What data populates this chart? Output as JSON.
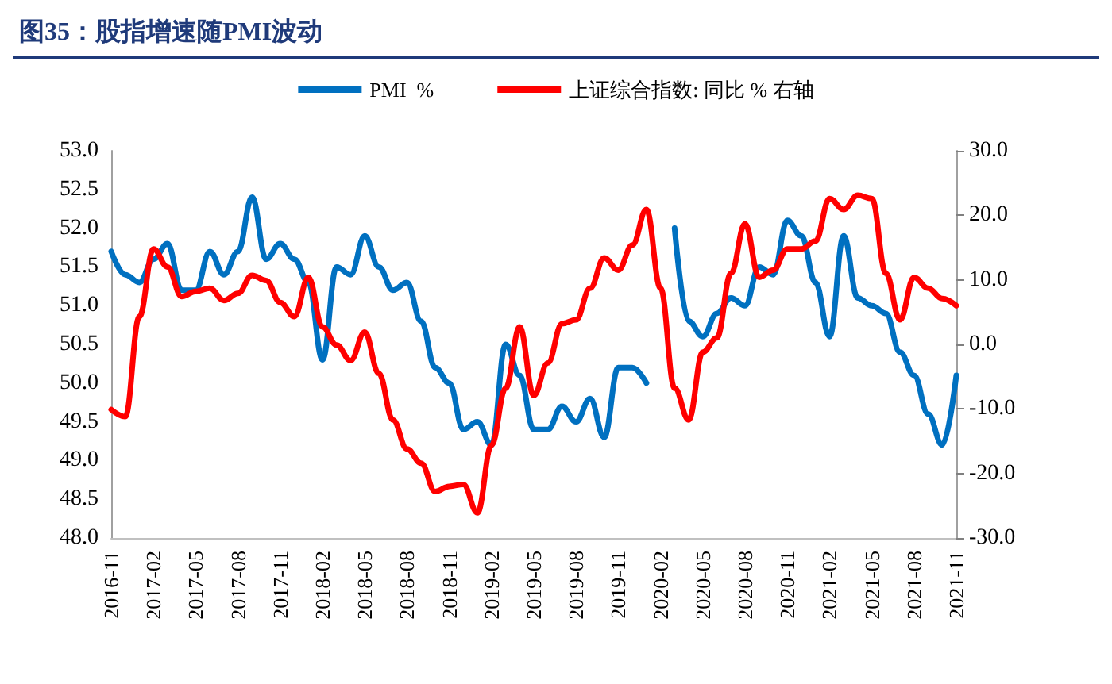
{
  "chart_data": {
    "type": "line",
    "title": "图35：股指增速随PMI波动",
    "categories": [
      "2016-11",
      null,
      null,
      "2017-02",
      null,
      null,
      "2017-05",
      null,
      null,
      "2017-08",
      null,
      null,
      "2017-11",
      null,
      null,
      "2018-02",
      null,
      null,
      "2018-05",
      null,
      null,
      "2018-08",
      null,
      null,
      "2018-11",
      null,
      null,
      "2019-02",
      null,
      null,
      "2019-05",
      null,
      null,
      "2019-08",
      null,
      null,
      "2019-11",
      null,
      null,
      "2020-02",
      null,
      null,
      "2020-05",
      null,
      null,
      "2020-08",
      null,
      null,
      "2020-11",
      null,
      null,
      "2021-02",
      null,
      null,
      "2021-05",
      null,
      null,
      "2021-08",
      null,
      null,
      "2021-11"
    ],
    "series": [
      {
        "name": "PMI  %",
        "color": "#0070c0",
        "values": [
          51.7,
          51.4,
          51.3,
          51.6,
          51.8,
          51.2,
          51.2,
          51.7,
          51.4,
          51.7,
          52.4,
          51.6,
          51.8,
          51.6,
          51.3,
          50.3,
          51.5,
          51.4,
          51.9,
          51.5,
          51.2,
          51.3,
          50.8,
          50.2,
          50.0,
          49.4,
          49.5,
          49.2,
          50.5,
          50.1,
          49.4,
          49.4,
          49.7,
          49.5,
          49.8,
          49.3,
          50.2,
          50.2,
          50.0,
          null,
          52.0,
          50.8,
          50.6,
          50.9,
          51.1,
          51.0,
          51.5,
          51.4,
          52.1,
          51.9,
          51.3,
          50.6,
          51.9,
          51.1,
          51.0,
          50.9,
          50.4,
          50.1,
          49.6,
          49.2,
          50.1
        ]
      },
      {
        "name": "上证综合指数: 同比 % 右轴",
        "color": "#ff0000",
        "axis": "y2",
        "values": [
          -10.1,
          -11.2,
          4.3,
          14.8,
          12,
          7.4,
          8.2,
          8.7,
          6.8,
          7.9,
          10.7,
          9.9,
          6.5,
          4.3,
          10.4,
          2.7,
          -0.1,
          -2.5,
          1.9,
          -4.5,
          -11.7,
          -16.2,
          -18.4,
          -22.8,
          -22,
          -21.7,
          -26.1,
          -15.6,
          -6.8,
          2.7,
          -7.9,
          -2.9,
          3.2,
          3.8,
          8.7,
          13.4,
          11.5,
          15.4,
          20.9,
          8.7,
          -6.8,
          -11.7,
          -1.2,
          1,
          11,
          18.7,
          10.4,
          11.5,
          14.8,
          14.8,
          16,
          22.6,
          20.9,
          23.1,
          22.6,
          11,
          3.8,
          10.4,
          8.7,
          7.1,
          6
        ]
      }
    ],
    "ylim": [
      48,
      53
    ],
    "yticks": [
      {
        "value": 48,
        "label": "48.0"
      },
      {
        "value": 48.5,
        "label": "48.5"
      },
      {
        "value": 49,
        "label": "49.0"
      },
      {
        "value": 49.5,
        "label": "49.5"
      },
      {
        "value": 50,
        "label": "50.0"
      },
      {
        "value": 50.5,
        "label": "50.5"
      },
      {
        "value": 51,
        "label": "51.0"
      },
      {
        "value": 51.5,
        "label": "51.5"
      },
      {
        "value": 52,
        "label": "52.0"
      },
      {
        "value": 52.5,
        "label": "52.5"
      },
      {
        "value": 53,
        "label": "53.0"
      }
    ],
    "y2lim": [
      -30,
      30
    ],
    "y2ticks": [
      {
        "value": -30,
        "label": "-30.0"
      },
      {
        "value": -20,
        "label": "-20.0"
      },
      {
        "value": -10,
        "label": "-10.0"
      },
      {
        "value": 0,
        "label": "0.0"
      },
      {
        "value": 10,
        "label": "10.0"
      },
      {
        "value": 20,
        "label": "20.0"
      },
      {
        "value": 30,
        "label": "30.0"
      }
    ],
    "legend": "top",
    "marker": "none",
    "grid": false
  }
}
